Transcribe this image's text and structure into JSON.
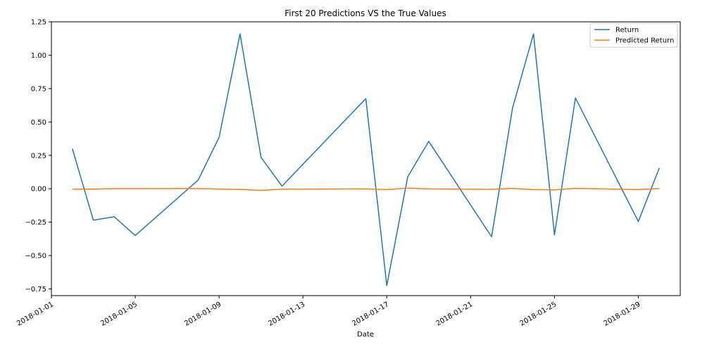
{
  "chart_data": {
    "type": "line",
    "title": "First 20 Predictions VS the True Values",
    "xlabel": "Date",
    "ylabel": "",
    "x_axis": {
      "type": "date",
      "range": [
        "2018-01-01",
        "2018-01-31"
      ],
      "tick_dates": [
        "2018-01-01",
        "2018-01-05",
        "2018-01-09",
        "2018-01-13",
        "2018-01-17",
        "2018-01-21",
        "2018-01-25",
        "2018-01-29"
      ],
      "tick_labels": [
        "2018-01-01",
        "2018-01-05",
        "2018-01-09",
        "2018-01-13",
        "2018-01-17",
        "2018-01-21",
        "2018-01-25",
        "2018-01-29"
      ]
    },
    "ylim": [
      -0.8,
      1.25
    ],
    "y_ticks": [
      -0.75,
      -0.5,
      -0.25,
      0.0,
      0.25,
      0.5,
      0.75,
      1.0,
      1.25
    ],
    "y_tick_labels": [
      "−0.75",
      "−0.50",
      "−0.25",
      "0.00",
      "0.25",
      "0.50",
      "0.75",
      "1.00",
      "1.25"
    ],
    "grid": false,
    "legend_position": "top-right",
    "x": [
      "2018-01-02",
      "2018-01-03",
      "2018-01-04",
      "2018-01-05",
      "2018-01-08",
      "2018-01-09",
      "2018-01-10",
      "2018-01-11",
      "2018-01-12",
      "2018-01-16",
      "2018-01-17",
      "2018-01-18",
      "2018-01-19",
      "2018-01-22",
      "2018-01-23",
      "2018-01-24",
      "2018-01-25",
      "2018-01-26",
      "2018-01-29",
      "2018-01-30"
    ],
    "series": [
      {
        "name": "Return",
        "color": "#1f77b4",
        "values": [
          0.3,
          -0.235,
          -0.21,
          -0.35,
          0.065,
          0.385,
          1.16,
          0.235,
          0.02,
          0.675,
          -0.725,
          0.09,
          0.355,
          -0.36,
          0.605,
          1.16,
          -0.345,
          0.68,
          -0.245,
          0.155
        ]
      },
      {
        "name": "Predicted Return",
        "color": "#ff7f0e",
        "values": [
          -0.003,
          -0.003,
          0.001,
          0.001,
          0.002,
          -0.002,
          -0.005,
          -0.012,
          -0.003,
          -0.001,
          -0.006,
          0.005,
          -0.001,
          -0.004,
          0.003,
          -0.006,
          -0.008,
          0.003,
          -0.006,
          0.002
        ]
      }
    ]
  }
}
